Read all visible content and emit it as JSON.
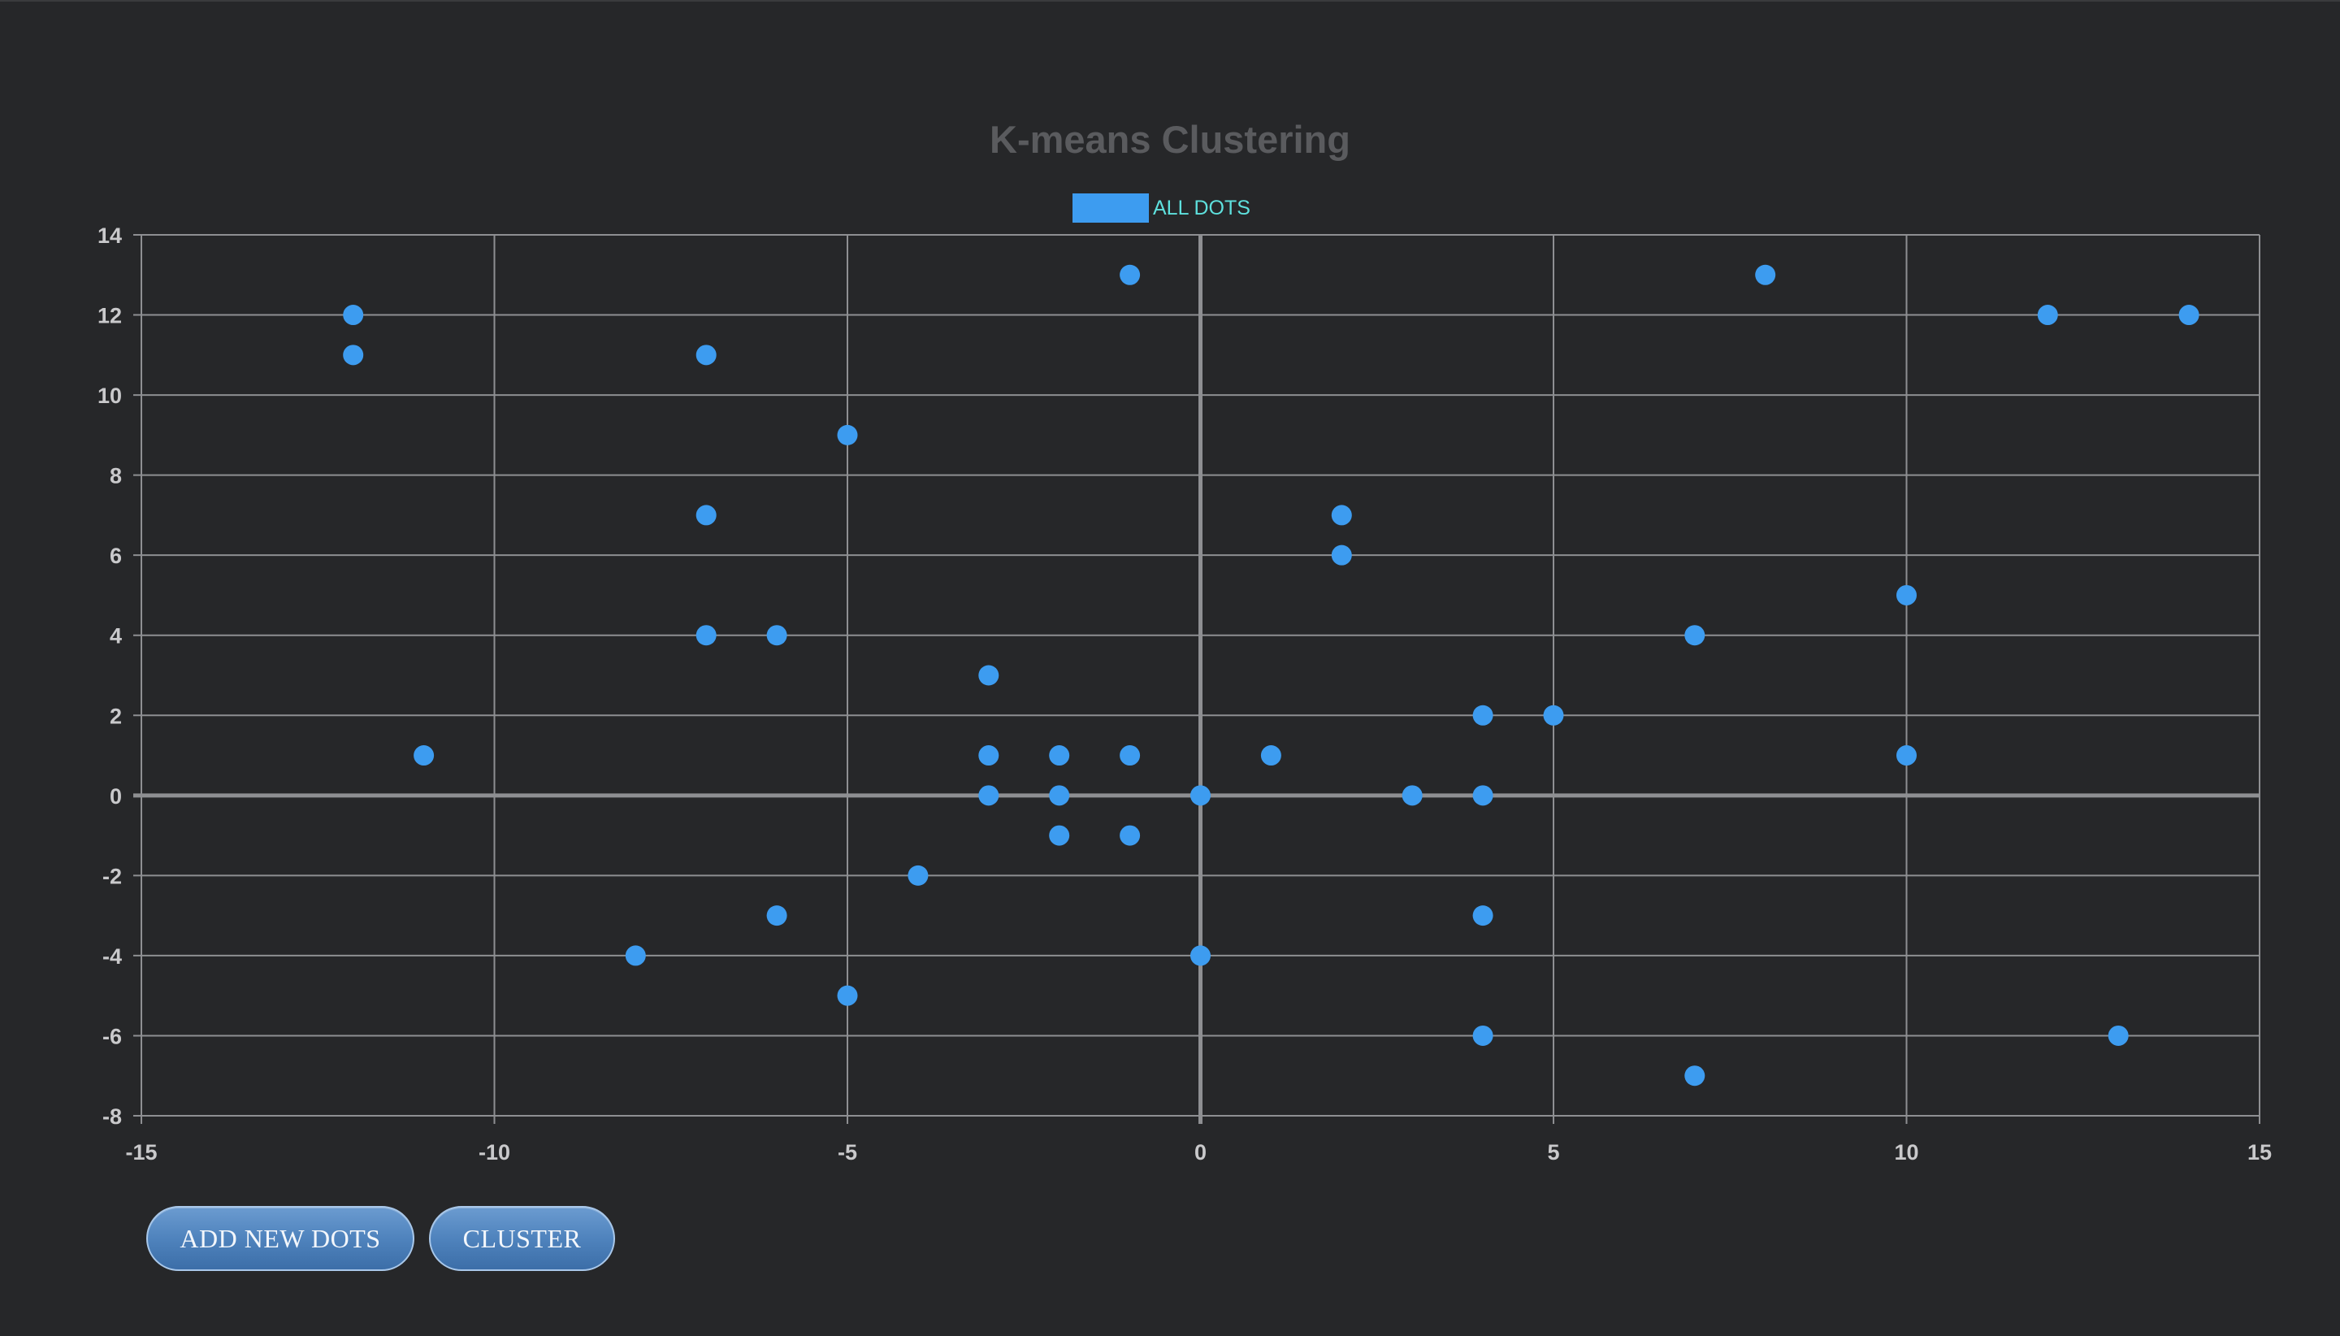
{
  "chart_data": {
    "type": "scatter",
    "title": "K-means Clustering",
    "xlabel": "",
    "ylabel": "",
    "xlim": [
      -15,
      15
    ],
    "ylim": [
      -8,
      14
    ],
    "x_ticks": [
      -15,
      -10,
      -5,
      0,
      5,
      10,
      15
    ],
    "y_ticks": [
      14,
      12,
      10,
      8,
      6,
      4,
      2,
      0,
      -2,
      -4,
      -6,
      -8
    ],
    "x_tick_labels": [
      "-15",
      "-10",
      "-5",
      "0",
      "5",
      "10",
      "15"
    ],
    "y_tick_labels": [
      "14",
      "12",
      "10",
      "8",
      "6",
      "4",
      "2",
      "0",
      "-2",
      "-4",
      "-6",
      "-8"
    ],
    "grid": true,
    "legend_position": "top-center",
    "series": [
      {
        "name": "ALL DOTS",
        "color": "#3d9cf0",
        "points": [
          [
            -12,
            12
          ],
          [
            -12,
            11
          ],
          [
            -11,
            1
          ],
          [
            -7,
            11
          ],
          [
            -7,
            7
          ],
          [
            -7,
            4
          ],
          [
            -6,
            4
          ],
          [
            -5,
            9
          ],
          [
            -8,
            -4
          ],
          [
            -6,
            -3
          ],
          [
            -5,
            -5
          ],
          [
            -4,
            -2
          ],
          [
            -3,
            3
          ],
          [
            -3,
            1
          ],
          [
            -3,
            0
          ],
          [
            -2,
            1
          ],
          [
            -2,
            0
          ],
          [
            -2,
            -1
          ],
          [
            -1,
            13
          ],
          [
            -1,
            1
          ],
          [
            -1,
            -1
          ],
          [
            0,
            0
          ],
          [
            0,
            -4
          ],
          [
            1,
            1
          ],
          [
            2,
            7
          ],
          [
            2,
            6
          ],
          [
            3,
            0
          ],
          [
            4,
            2
          ],
          [
            4,
            0
          ],
          [
            4,
            -3
          ],
          [
            4,
            -6
          ],
          [
            5,
            2
          ],
          [
            7,
            4
          ],
          [
            7,
            -7
          ],
          [
            8,
            13
          ],
          [
            10,
            5
          ],
          [
            10,
            1
          ],
          [
            12,
            12
          ],
          [
            13,
            -6
          ],
          [
            14,
            12
          ]
        ]
      }
    ]
  },
  "colors": {
    "background": "#262729",
    "grid": "#8e8f92",
    "zero_line": "#8e8f92",
    "title": "#5a5b5e",
    "legend_text": "#5ee0dd",
    "tick_text": "#c9c9cb"
  },
  "buttons": {
    "add_label": "ADD NEW DOTS",
    "cluster_label": "CLUSTER"
  }
}
